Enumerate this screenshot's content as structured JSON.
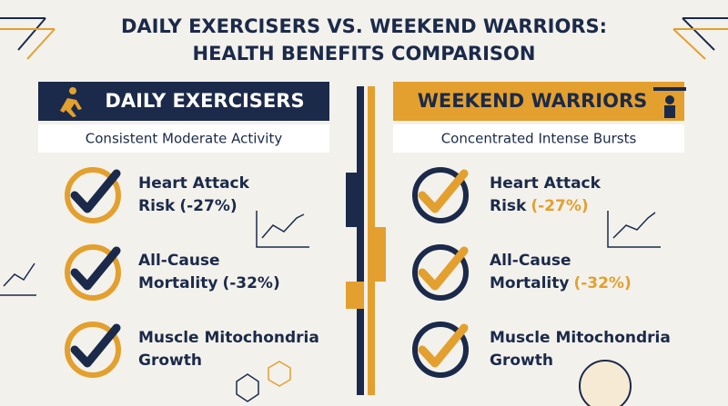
{
  "title": [
    "DAILY EXERCISERS VS. WEEKEND WARRIORS:",
    "HEALTH BENEFITS COMPARISON"
  ],
  "columns": [
    {
      "header": "DAILY EXERCISERS",
      "subtitle": "Consistent Moderate Activity",
      "items": [
        {
          "lines": [
            "Heart Attack",
            "Risk"
          ],
          "stat": "(-27%)"
        },
        {
          "lines": [
            "All-Cause",
            "Mortality"
          ],
          "stat": "(-32%)"
        },
        {
          "lines": [
            "Muscle Mitochondria",
            "Growth"
          ]
        }
      ]
    },
    {
      "header": "WEEKEND WARRIORS",
      "subtitle": "Concentrated Intense Bursts",
      "items": [
        {
          "lines": [
            "Heart Attack",
            "Risk"
          ],
          "stat": "(-27%)"
        },
        {
          "lines": [
            "All-Cause",
            "Mortality"
          ],
          "stat": "(-32%)"
        },
        {
          "lines": [
            "Muscle Mitochondria",
            "Growth"
          ]
        }
      ]
    }
  ]
}
